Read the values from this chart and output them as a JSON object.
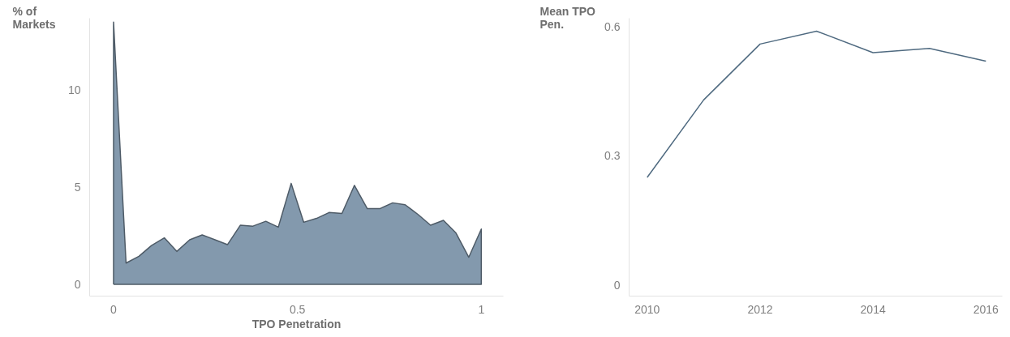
{
  "chart_data": [
    {
      "type": "area",
      "xlabel": "TPO Penetration",
      "ylabel": "% of\nMarkets",
      "color": "#8399ad",
      "xlim": [
        -0.065,
        1.06
      ],
      "ylim": [
        -0.6,
        13.7
      ],
      "xticks": [
        0,
        0.5,
        1
      ],
      "yticks": [
        0,
        5,
        10
      ],
      "x": [
        0,
        0.034,
        0.069,
        0.103,
        0.138,
        0.172,
        0.207,
        0.241,
        0.276,
        0.31,
        0.345,
        0.379,
        0.414,
        0.448,
        0.483,
        0.517,
        0.552,
        0.586,
        0.621,
        0.655,
        0.69,
        0.724,
        0.759,
        0.793,
        0.828,
        0.862,
        0.897,
        0.931,
        0.966,
        1
      ],
      "values": [
        13.5,
        1.1,
        1.45,
        2.0,
        2.4,
        1.7,
        2.3,
        2.55,
        2.3,
        2.05,
        3.05,
        3.0,
        3.25,
        2.95,
        5.2,
        3.2,
        3.4,
        3.7,
        3.65,
        5.1,
        3.9,
        3.9,
        4.2,
        4.1,
        3.6,
        3.05,
        3.3,
        2.65,
        1.4,
        2.85
      ]
    },
    {
      "type": "line",
      "ylabel": "Mean TPO\nPen.",
      "color": "#4f6a80",
      "xlim": [
        2009.68,
        2016.29
      ],
      "ylim": [
        -0.026,
        0.62
      ],
      "xticks": [
        2010,
        2012,
        2014,
        2016
      ],
      "yticks": [
        0,
        0.3,
        0.6
      ],
      "x": [
        2010,
        2011,
        2012,
        2013,
        2014,
        2015,
        2016
      ],
      "values": [
        0.25,
        0.43,
        0.56,
        0.59,
        0.54,
        0.55,
        0.52
      ]
    }
  ]
}
